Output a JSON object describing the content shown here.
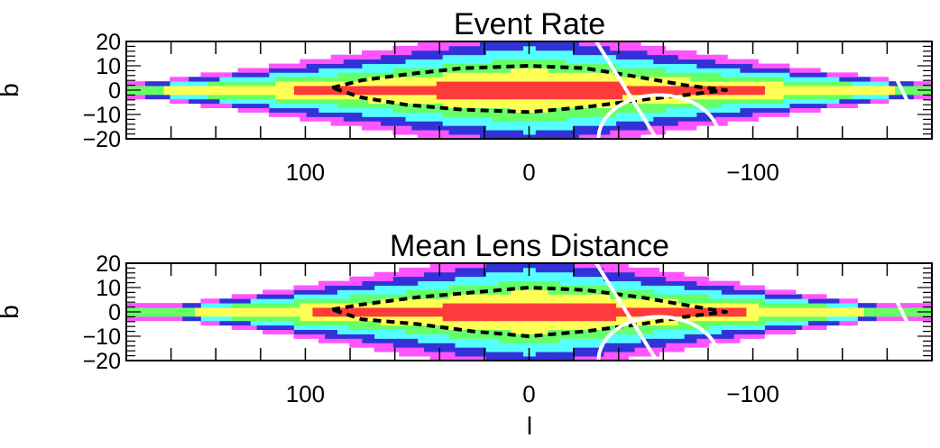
{
  "chart_data": [
    {
      "type": "heatmap",
      "title": "Event Rate",
      "xlabel": "",
      "ylabel": "b",
      "xlim": [
        180,
        -180
      ],
      "ylim": [
        -20,
        20
      ],
      "x_ticks": [
        100,
        0,
        -100
      ],
      "x_tick_labels": [
        "100",
        "0",
        "−100"
      ],
      "y_ticks": [
        20,
        10,
        0,
        -10,
        -20
      ],
      "y_tick_labels": [
        "20",
        "10",
        "0",
        "−10",
        "−20"
      ],
      "grid": false,
      "field": {
        "l_extent": [
          -180,
          180
        ],
        "b_extent": [
          -20,
          20
        ],
        "l_halfwidth": 175,
        "b_edge": 20,
        "levels": 6
      },
      "color_levels": [
        "#ff3b3b",
        "#ffff55",
        "#66ff66",
        "#55ffff",
        "#3232d8",
        "#ff55ff"
      ],
      "contour_dashed": {
        "style": "dashed",
        "color": "#000000",
        "upper": [
          [
            88,
            1
          ],
          [
            75,
            4
          ],
          [
            55,
            6.5
          ],
          [
            30,
            9
          ],
          [
            0,
            10
          ],
          [
            -25,
            9
          ],
          [
            -45,
            6
          ],
          [
            -70,
            2
          ],
          [
            -88,
            0
          ]
        ],
        "lower": [
          [
            -88,
            0
          ],
          [
            -70,
            -2
          ],
          [
            -50,
            -4
          ],
          [
            -25,
            -7
          ],
          [
            0,
            -9
          ],
          [
            30,
            -8
          ],
          [
            55,
            -6
          ],
          [
            75,
            -3
          ],
          [
            88,
            1
          ]
        ]
      },
      "overlay_lines": [
        {
          "color": "#ffffff",
          "points": [
            [
              -30,
              20
            ],
            [
              -57,
              -20
            ]
          ]
        },
        {
          "color": "#ffffff",
          "points": [
            [
              -156,
              20
            ],
            [
              -172,
              -10
            ]
          ]
        },
        {
          "color": "#ffffff",
          "arc_center": [
            -58,
            -20
          ],
          "arc_radius": [
            27,
            18
          ]
        }
      ]
    },
    {
      "type": "heatmap",
      "title": "Mean Lens Distance",
      "xlabel": "l",
      "ylabel": "b",
      "xlim": [
        180,
        -180
      ],
      "ylim": [
        -20,
        20
      ],
      "x_ticks": [
        100,
        0,
        -100
      ],
      "x_tick_labels": [
        "100",
        "0",
        "−100"
      ],
      "y_ticks": [
        20,
        10,
        0,
        -10,
        -20
      ],
      "y_tick_labels": [
        "20",
        "10",
        "0",
        "−10",
        "−20"
      ],
      "grid": false,
      "field": {
        "l_extent": [
          -180,
          180
        ],
        "b_extent": [
          -20,
          20
        ],
        "l_halfwidth": 160,
        "b_edge": 20,
        "levels": 6
      },
      "color_levels": [
        "#ff3b3b",
        "#ffff55",
        "#66ff66",
        "#55ffff",
        "#3232d8",
        "#ff55ff"
      ],
      "contour_dashed": {
        "style": "dashed",
        "color": "#000000",
        "upper": [
          [
            88,
            1
          ],
          [
            75,
            3
          ],
          [
            50,
            6
          ],
          [
            25,
            8
          ],
          [
            0,
            10
          ],
          [
            -25,
            9
          ],
          [
            -50,
            6
          ],
          [
            -75,
            2
          ],
          [
            -88,
            0
          ]
        ],
        "lower": [
          [
            -88,
            0
          ],
          [
            -70,
            -2
          ],
          [
            -50,
            -5
          ],
          [
            -25,
            -8
          ],
          [
            0,
            -10
          ],
          [
            25,
            -8
          ],
          [
            50,
            -5
          ],
          [
            75,
            -3
          ],
          [
            88,
            1
          ]
        ]
      },
      "overlay_lines": [
        {
          "color": "#ffffff",
          "points": [
            [
              -30,
              20
            ],
            [
              -57,
              -20
            ]
          ]
        },
        {
          "color": "#ffffff",
          "points": [
            [
              -156,
              20
            ],
            [
              -172,
              -10
            ]
          ]
        },
        {
          "color": "#ffffff",
          "arc_center": [
            -58,
            -20
          ],
          "arc_radius": [
            27,
            18
          ]
        }
      ]
    }
  ]
}
